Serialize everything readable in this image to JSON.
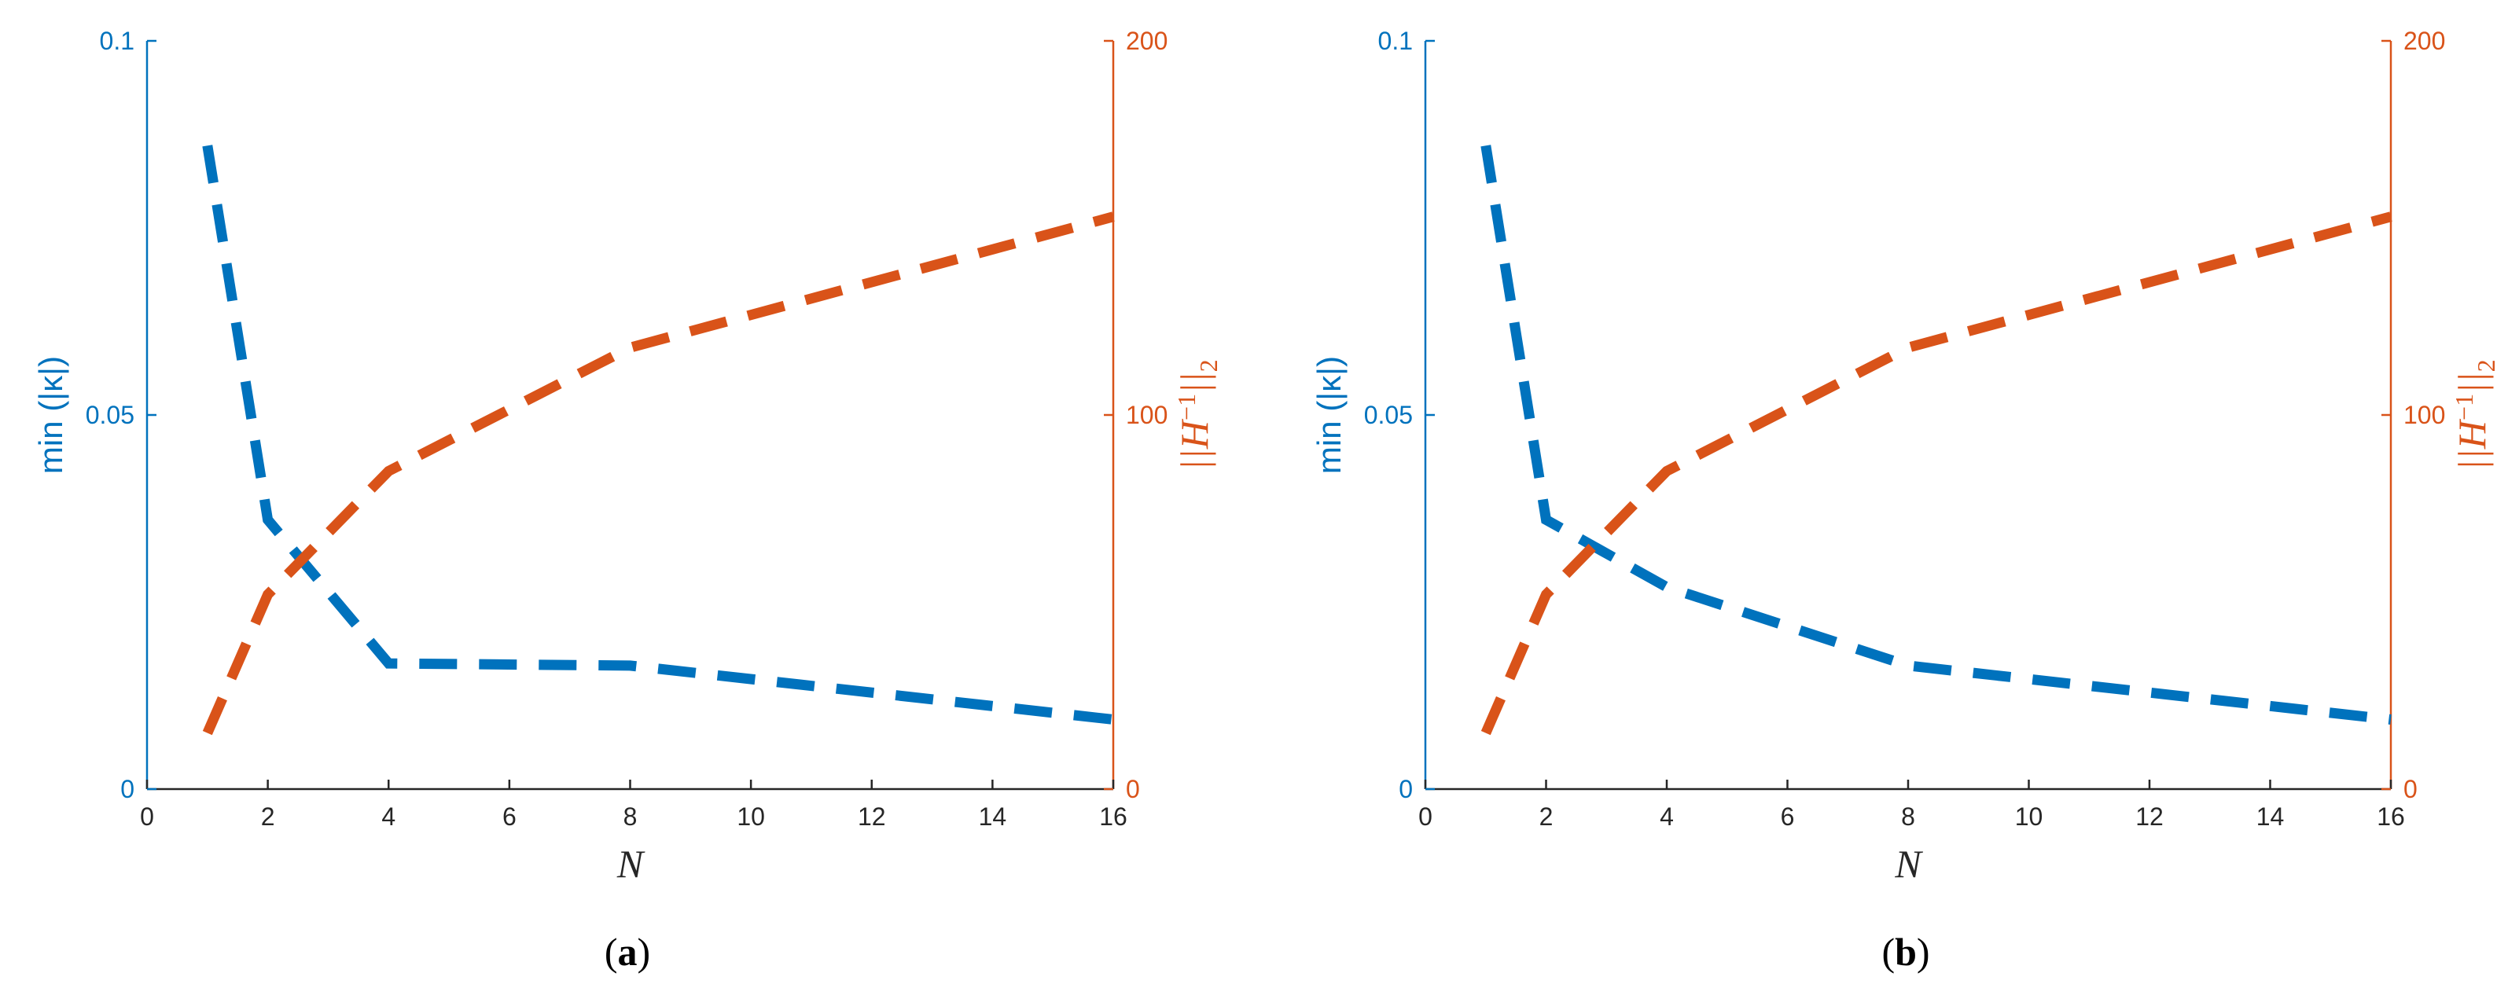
{
  "colors": {
    "left_axis": "#0072BD",
    "right_axis": "#D95319",
    "axis": "#262626",
    "background": "#ffffff"
  },
  "chart_data": [
    {
      "type": "line",
      "panel_label": "a",
      "xlabel": "N",
      "ylabel_left": "min (|κ|)",
      "ylabel_right_main": "||H",
      "ylabel_right_sup": "−1",
      "ylabel_right_tail": "||",
      "ylabel_right_sub": "2",
      "xlim": [
        0,
        16
      ],
      "ylim_left": [
        0,
        0.1
      ],
      "ylim_right": [
        0,
        200
      ],
      "xticks": [
        0,
        2,
        4,
        6,
        8,
        10,
        12,
        14,
        16
      ],
      "xtick_labels": [
        "0",
        "2",
        "4",
        "6",
        "8",
        "10",
        "12",
        "14",
        "16"
      ],
      "yticks_left": [
        0,
        0.05,
        0.1
      ],
      "ytick_labels_left": [
        "0",
        "0.05",
        "0.1"
      ],
      "yticks_right": [
        0,
        100,
        200
      ],
      "ytick_labels_right": [
        "0",
        "100",
        "200"
      ],
      "grid": false,
      "series": [
        {
          "axis": "left",
          "color": "#0072BD",
          "style": "dashed",
          "x": [
            1,
            2,
            4,
            8,
            16
          ],
          "y": [
            0.086,
            0.036,
            0.0168,
            0.0165,
            0.0093
          ]
        },
        {
          "axis": "right",
          "color": "#D95319",
          "style": "dashed",
          "x": [
            1,
            2,
            4,
            8,
            16
          ],
          "y": [
            15,
            52,
            85,
            118,
            153
          ]
        }
      ]
    },
    {
      "type": "line",
      "panel_label": "b",
      "xlabel": "N",
      "ylabel_left": "min (|κ|)",
      "ylabel_right_main": "||H",
      "ylabel_right_sup": "−1",
      "ylabel_right_tail": "||",
      "ylabel_right_sub": "2",
      "xlim": [
        0,
        16
      ],
      "ylim_left": [
        0,
        0.1
      ],
      "ylim_right": [
        0,
        200
      ],
      "xticks": [
        0,
        2,
        4,
        6,
        8,
        10,
        12,
        14,
        16
      ],
      "xtick_labels": [
        "0",
        "2",
        "4",
        "6",
        "8",
        "10",
        "12",
        "14",
        "16"
      ],
      "yticks_left": [
        0,
        0.05,
        0.1
      ],
      "ytick_labels_left": [
        "0",
        "0.05",
        "0.1"
      ],
      "yticks_right": [
        0,
        100,
        200
      ],
      "ytick_labels_right": [
        "0",
        "100",
        "200"
      ],
      "grid": false,
      "series": [
        {
          "axis": "left",
          "color": "#0072BD",
          "style": "dashed",
          "x": [
            1,
            2,
            4,
            8,
            16
          ],
          "y": [
            0.086,
            0.036,
            0.027,
            0.0165,
            0.0093
          ]
        },
        {
          "axis": "right",
          "color": "#D95319",
          "style": "dashed",
          "x": [
            1,
            2,
            4,
            8,
            16
          ],
          "y": [
            15,
            52,
            85,
            118,
            153
          ]
        }
      ]
    }
  ]
}
